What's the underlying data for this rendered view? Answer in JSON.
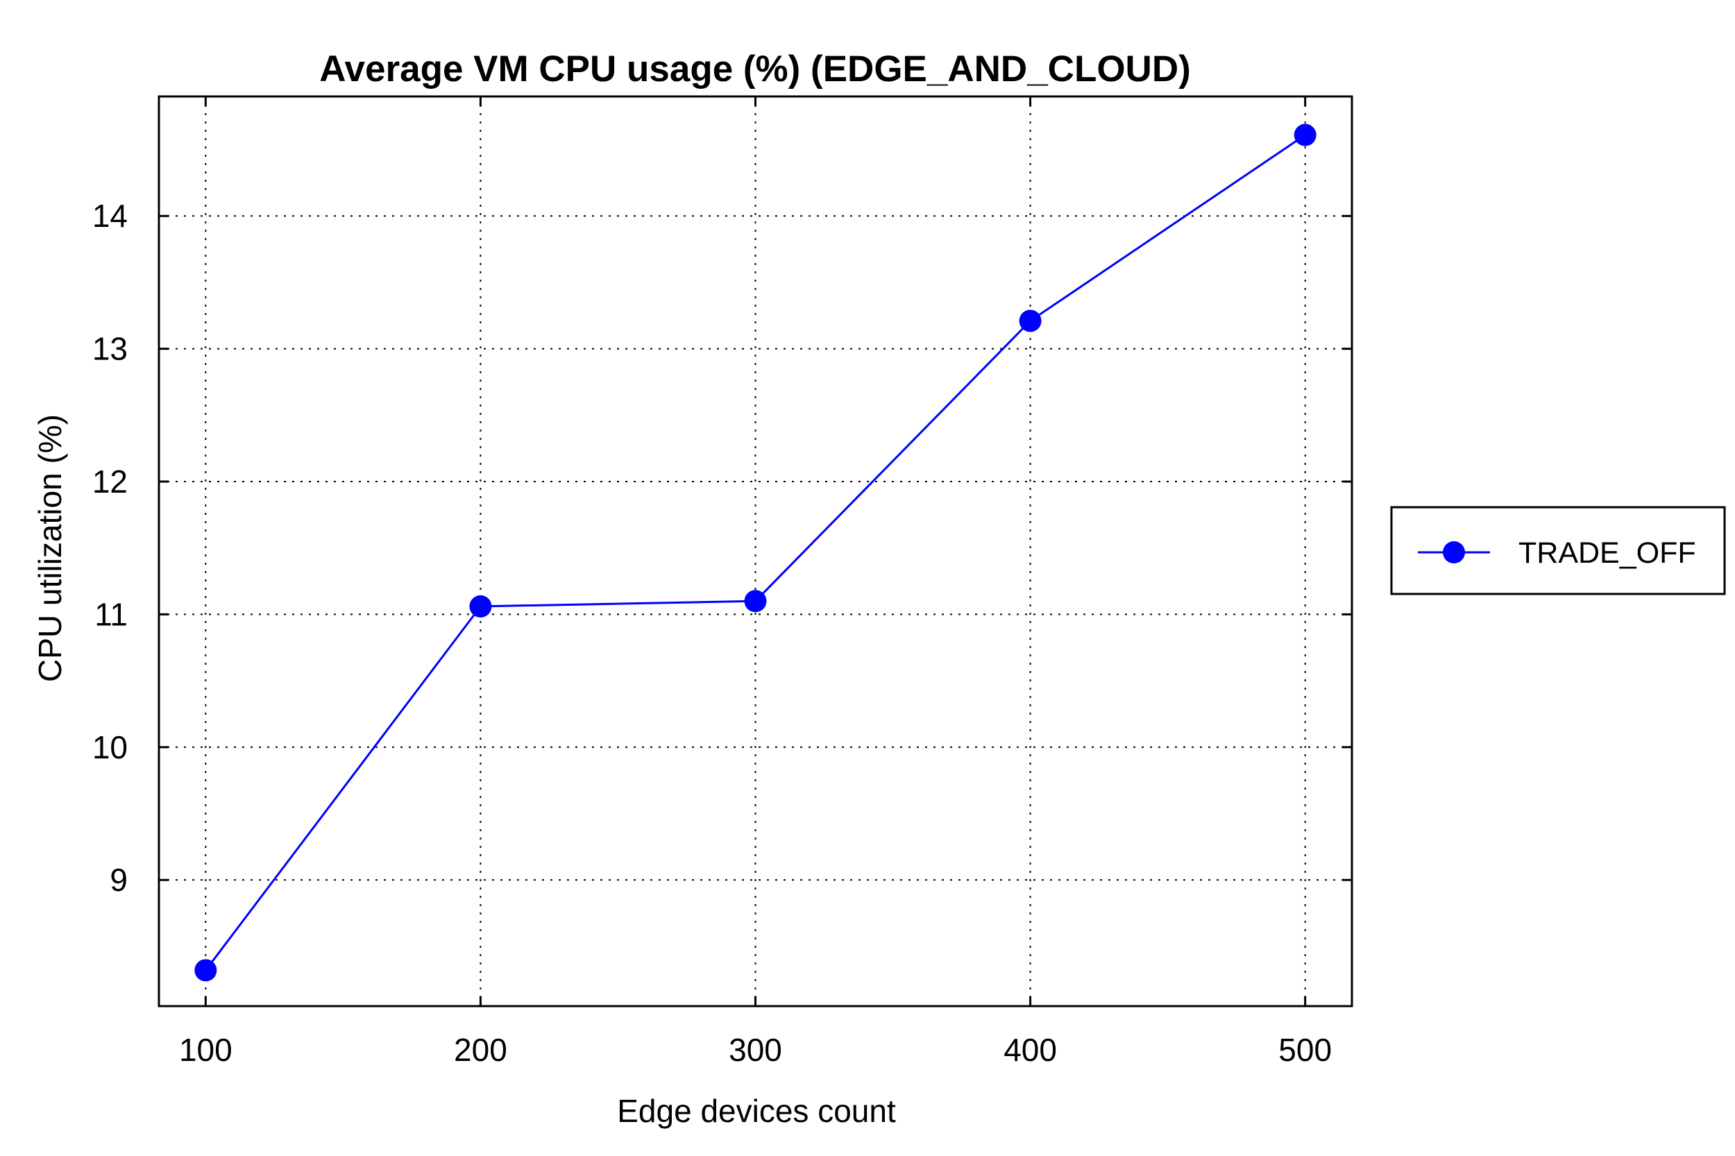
{
  "chart_data": {
    "type": "line",
    "title": "Average VM CPU usage (%) (EDGE_AND_CLOUD)",
    "xlabel": "Edge devices count",
    "ylabel": "CPU utilization (%)",
    "x": [
      100,
      200,
      300,
      400,
      500
    ],
    "x_ticks": [
      "100",
      "200",
      "300",
      "400",
      "500"
    ],
    "y_ticks": [
      "9",
      "10",
      "11",
      "12",
      "13",
      "14"
    ],
    "xlim": [
      83,
      517
    ],
    "ylim": [
      8.05,
      14.9
    ],
    "grid": true,
    "legend_position": "outside-right",
    "series": [
      {
        "name": "TRADE_OFF",
        "color": "#0000ff",
        "marker": "circle",
        "values": [
          8.32,
          11.06,
          11.1,
          13.21,
          14.61
        ]
      }
    ]
  }
}
